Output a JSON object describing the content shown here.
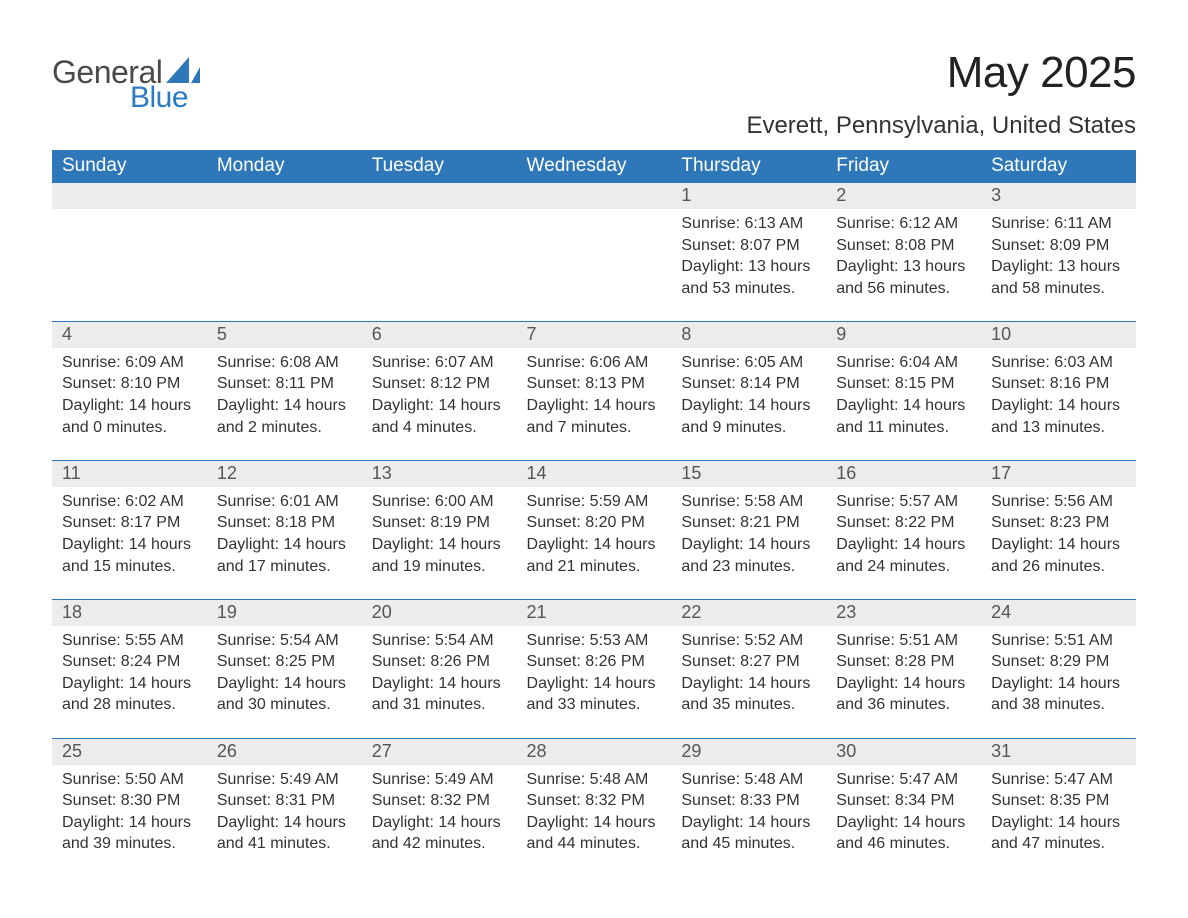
{
  "brand": {
    "general": "General",
    "blue": "Blue",
    "accent_color": "#2e78ba"
  },
  "title": "May 2025",
  "location": "Everett, Pennsylvania, United States",
  "colors": {
    "header_bg": "#2e78ba",
    "header_text": "#ffffff",
    "daynum_bg": "#ececec",
    "daynum_text": "#555555",
    "body_text": "#333333",
    "row_divider": "#2e78ba",
    "page_bg": "#ffffff"
  },
  "typography": {
    "title_fontsize": 44,
    "location_fontsize": 24,
    "header_fontsize": 19,
    "daynum_fontsize": 18,
    "body_fontsize": 16
  },
  "day_names": [
    "Sunday",
    "Monday",
    "Tuesday",
    "Wednesday",
    "Thursday",
    "Friday",
    "Saturday"
  ],
  "weeks": [
    [
      null,
      null,
      null,
      null,
      {
        "n": "1",
        "sunrise": "6:13 AM",
        "sunset": "8:07 PM",
        "daylight": "13 hours and 53 minutes."
      },
      {
        "n": "2",
        "sunrise": "6:12 AM",
        "sunset": "8:08 PM",
        "daylight": "13 hours and 56 minutes."
      },
      {
        "n": "3",
        "sunrise": "6:11 AM",
        "sunset": "8:09 PM",
        "daylight": "13 hours and 58 minutes."
      }
    ],
    [
      {
        "n": "4",
        "sunrise": "6:09 AM",
        "sunset": "8:10 PM",
        "daylight": "14 hours and 0 minutes."
      },
      {
        "n": "5",
        "sunrise": "6:08 AM",
        "sunset": "8:11 PM",
        "daylight": "14 hours and 2 minutes."
      },
      {
        "n": "6",
        "sunrise": "6:07 AM",
        "sunset": "8:12 PM",
        "daylight": "14 hours and 4 minutes."
      },
      {
        "n": "7",
        "sunrise": "6:06 AM",
        "sunset": "8:13 PM",
        "daylight": "14 hours and 7 minutes."
      },
      {
        "n": "8",
        "sunrise": "6:05 AM",
        "sunset": "8:14 PM",
        "daylight": "14 hours and 9 minutes."
      },
      {
        "n": "9",
        "sunrise": "6:04 AM",
        "sunset": "8:15 PM",
        "daylight": "14 hours and 11 minutes."
      },
      {
        "n": "10",
        "sunrise": "6:03 AM",
        "sunset": "8:16 PM",
        "daylight": "14 hours and 13 minutes."
      }
    ],
    [
      {
        "n": "11",
        "sunrise": "6:02 AM",
        "sunset": "8:17 PM",
        "daylight": "14 hours and 15 minutes."
      },
      {
        "n": "12",
        "sunrise": "6:01 AM",
        "sunset": "8:18 PM",
        "daylight": "14 hours and 17 minutes."
      },
      {
        "n": "13",
        "sunrise": "6:00 AM",
        "sunset": "8:19 PM",
        "daylight": "14 hours and 19 minutes."
      },
      {
        "n": "14",
        "sunrise": "5:59 AM",
        "sunset": "8:20 PM",
        "daylight": "14 hours and 21 minutes."
      },
      {
        "n": "15",
        "sunrise": "5:58 AM",
        "sunset": "8:21 PM",
        "daylight": "14 hours and 23 minutes."
      },
      {
        "n": "16",
        "sunrise": "5:57 AM",
        "sunset": "8:22 PM",
        "daylight": "14 hours and 24 minutes."
      },
      {
        "n": "17",
        "sunrise": "5:56 AM",
        "sunset": "8:23 PM",
        "daylight": "14 hours and 26 minutes."
      }
    ],
    [
      {
        "n": "18",
        "sunrise": "5:55 AM",
        "sunset": "8:24 PM",
        "daylight": "14 hours and 28 minutes."
      },
      {
        "n": "19",
        "sunrise": "5:54 AM",
        "sunset": "8:25 PM",
        "daylight": "14 hours and 30 minutes."
      },
      {
        "n": "20",
        "sunrise": "5:54 AM",
        "sunset": "8:26 PM",
        "daylight": "14 hours and 31 minutes."
      },
      {
        "n": "21",
        "sunrise": "5:53 AM",
        "sunset": "8:26 PM",
        "daylight": "14 hours and 33 minutes."
      },
      {
        "n": "22",
        "sunrise": "5:52 AM",
        "sunset": "8:27 PM",
        "daylight": "14 hours and 35 minutes."
      },
      {
        "n": "23",
        "sunrise": "5:51 AM",
        "sunset": "8:28 PM",
        "daylight": "14 hours and 36 minutes."
      },
      {
        "n": "24",
        "sunrise": "5:51 AM",
        "sunset": "8:29 PM",
        "daylight": "14 hours and 38 minutes."
      }
    ],
    [
      {
        "n": "25",
        "sunrise": "5:50 AM",
        "sunset": "8:30 PM",
        "daylight": "14 hours and 39 minutes."
      },
      {
        "n": "26",
        "sunrise": "5:49 AM",
        "sunset": "8:31 PM",
        "daylight": "14 hours and 41 minutes."
      },
      {
        "n": "27",
        "sunrise": "5:49 AM",
        "sunset": "8:32 PM",
        "daylight": "14 hours and 42 minutes."
      },
      {
        "n": "28",
        "sunrise": "5:48 AM",
        "sunset": "8:32 PM",
        "daylight": "14 hours and 44 minutes."
      },
      {
        "n": "29",
        "sunrise": "5:48 AM",
        "sunset": "8:33 PM",
        "daylight": "14 hours and 45 minutes."
      },
      {
        "n": "30",
        "sunrise": "5:47 AM",
        "sunset": "8:34 PM",
        "daylight": "14 hours and 46 minutes."
      },
      {
        "n": "31",
        "sunrise": "5:47 AM",
        "sunset": "8:35 PM",
        "daylight": "14 hours and 47 minutes."
      }
    ]
  ],
  "labels": {
    "sunrise": "Sunrise: ",
    "sunset": "Sunset: ",
    "daylight": "Daylight: "
  }
}
